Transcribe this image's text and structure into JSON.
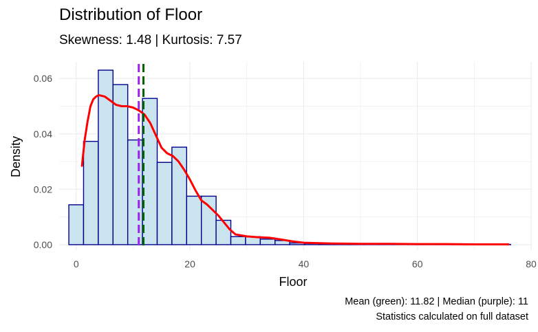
{
  "chart_data": {
    "type": "histogram",
    "title": "Distribution of Floor",
    "subtitle": "Skewness: 1.48 | Kurtosis: 7.57",
    "xlabel": "Floor",
    "ylabel": "Density",
    "caption_line1": "Mean (green): 11.82 | Median (purple): 11",
    "caption_line2": "Statistics calculated on full dataset",
    "xlim": [
      -3,
      80
    ],
    "ylim": [
      -0.002,
      0.066
    ],
    "x_ticks": [
      0,
      20,
      40,
      60,
      80
    ],
    "x_tick_labels": [
      "0",
      "20",
      "40",
      "60",
      "80"
    ],
    "y_ticks": [
      0.0,
      0.02,
      0.04,
      0.06
    ],
    "y_tick_labels": [
      "0.00",
      "0.02",
      "0.04",
      "0.06"
    ],
    "grid": true,
    "bin_width": 2.59,
    "bins": [
      {
        "start": -1.3,
        "density": 0.0144
      },
      {
        "start": 1.29,
        "density": 0.0373
      },
      {
        "start": 3.88,
        "density": 0.063
      },
      {
        "start": 6.47,
        "density": 0.0578
      },
      {
        "start": 9.06,
        "density": 0.0378
      },
      {
        "start": 11.65,
        "density": 0.0528
      },
      {
        "start": 14.24,
        "density": 0.0297
      },
      {
        "start": 16.83,
        "density": 0.0352
      },
      {
        "start": 19.42,
        "density": 0.0175
      },
      {
        "start": 22.01,
        "density": 0.0175
      },
      {
        "start": 24.6,
        "density": 0.0088
      },
      {
        "start": 27.19,
        "density": 0.0029
      },
      {
        "start": 29.78,
        "density": 0.0029
      },
      {
        "start": 32.37,
        "density": 0.002
      },
      {
        "start": 34.96,
        "density": 0.0015
      },
      {
        "start": 37.55,
        "density": 0.0006
      },
      {
        "start": 40.14,
        "density": 0.0004
      },
      {
        "start": 42.73,
        "density": 0.0003
      },
      {
        "start": 45.32,
        "density": 0.0002
      },
      {
        "start": 47.91,
        "density": 0.0002
      },
      {
        "start": 50.5,
        "density": 0.0001
      },
      {
        "start": 53.09,
        "density": 0.0001
      },
      {
        "start": 55.68,
        "density": 0.0001
      },
      {
        "start": 58.27,
        "density": 0.0001
      },
      {
        "start": 60.86,
        "density": 0.0001
      },
      {
        "start": 63.45,
        "density": 0.0001
      },
      {
        "start": 66.04,
        "density": 0.0001
      },
      {
        "start": 68.63,
        "density": 0.0001
      },
      {
        "start": 71.22,
        "density": 0.0001
      },
      {
        "start": 73.81,
        "density": 0.0001
      }
    ],
    "density_curve": {
      "x": [
        1,
        1.5,
        2,
        2.5,
        3,
        3.5,
        4,
        5,
        6,
        7,
        8,
        9,
        10,
        11,
        12,
        13,
        14,
        15,
        16,
        17,
        18,
        19,
        20,
        21,
        22,
        23,
        24,
        25,
        26,
        27,
        28,
        30,
        32,
        34,
        36,
        38,
        40,
        45,
        50,
        55,
        60,
        65,
        70,
        76
      ],
      "y": [
        0.0285,
        0.038,
        0.0445,
        0.05,
        0.0525,
        0.0535,
        0.054,
        0.0535,
        0.052,
        0.0505,
        0.05,
        0.05,
        0.0495,
        0.0485,
        0.047,
        0.044,
        0.0395,
        0.035,
        0.033,
        0.032,
        0.03,
        0.027,
        0.0235,
        0.0195,
        0.016,
        0.0145,
        0.0125,
        0.0105,
        0.008,
        0.0055,
        0.0037,
        0.003,
        0.0027,
        0.0025,
        0.0019,
        0.0012,
        0.0007,
        0.0004,
        0.0003,
        0.0003,
        0.0002,
        0.0002,
        0.0001,
        0.0001
      ]
    },
    "mean": 11.82,
    "median": 11,
    "colors": {
      "bar_fill": "#c9e4ef",
      "bar_stroke": "#00008b",
      "density_line": "#ff0000",
      "mean_line": "#006400",
      "median_line": "#a020f0",
      "grid": "#ebebeb"
    }
  }
}
